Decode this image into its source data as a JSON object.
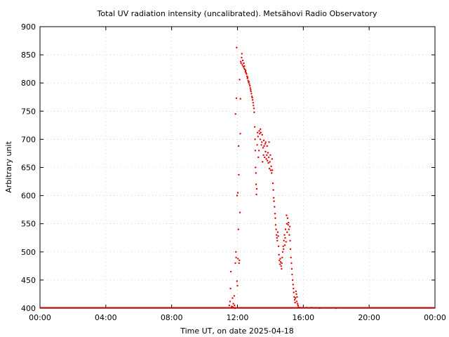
{
  "chart_data": {
    "type": "scatter",
    "title": "Total UV radiation intensity (uncalibrated). Metsähovi Radio Observatory",
    "xlabel": "Time UT, on date 2025-04-18",
    "ylabel": "Arbitrary unit",
    "xlim": [
      0,
      24
    ],
    "ylim": [
      400,
      900
    ],
    "x_ticks": [
      {
        "value": 0,
        "label": "00:00"
      },
      {
        "value": 4,
        "label": "04:00"
      },
      {
        "value": 8,
        "label": "08:00"
      },
      {
        "value": 12,
        "label": "12:00"
      },
      {
        "value": 16,
        "label": "16:00"
      },
      {
        "value": 20,
        "label": "20:00"
      },
      {
        "value": 24,
        "label": "00:00"
      }
    ],
    "y_ticks": [
      {
        "value": 400,
        "label": "400"
      },
      {
        "value": 450,
        "label": "450"
      },
      {
        "value": 500,
        "label": "500"
      },
      {
        "value": 550,
        "label": "550"
      },
      {
        "value": 600,
        "label": "600"
      },
      {
        "value": 650,
        "label": "650"
      },
      {
        "value": 700,
        "label": "700"
      },
      {
        "value": 750,
        "label": "750"
      },
      {
        "value": 800,
        "label": "800"
      },
      {
        "value": 850,
        "label": "850"
      },
      {
        "value": 900,
        "label": "900"
      }
    ],
    "grid": true,
    "legend": false,
    "colors": {
      "series": "#e00000",
      "grid": "#bbbbbb",
      "axis": "#000000"
    },
    "series": [
      {
        "points": [
          [
            11.5,
            405
          ],
          [
            11.55,
            412
          ],
          [
            11.58,
            435
          ],
          [
            11.6,
            465
          ],
          [
            11.65,
            403
          ],
          [
            11.7,
            418
          ],
          [
            11.72,
            402
          ],
          [
            11.75,
            408
          ],
          [
            11.8,
            422
          ],
          [
            11.82,
            405
          ],
          [
            11.85,
            400
          ],
          [
            11.87,
            480
          ],
          [
            11.88,
            745
          ],
          [
            11.9,
            500
          ],
          [
            11.92,
            490
          ],
          [
            11.93,
            773
          ],
          [
            11.95,
            863
          ],
          [
            11.97,
            448
          ],
          [
            11.98,
            600
          ],
          [
            12.0,
            440
          ],
          [
            12.02,
            605
          ],
          [
            12.03,
            488
          ],
          [
            12.05,
            540
          ],
          [
            12.07,
            688
          ],
          [
            12.08,
            637
          ],
          [
            12.1,
            480
          ],
          [
            12.12,
            485
          ],
          [
            12.13,
            806
          ],
          [
            12.15,
            570
          ],
          [
            12.17,
            710
          ],
          [
            12.18,
            772
          ],
          [
            12.2,
            838
          ],
          [
            12.22,
            835
          ],
          [
            12.25,
            845
          ],
          [
            12.27,
            852
          ],
          [
            12.3,
            832
          ],
          [
            12.32,
            840
          ],
          [
            12.35,
            829
          ],
          [
            12.38,
            835
          ],
          [
            12.4,
            826
          ],
          [
            12.42,
            830
          ],
          [
            12.45,
            824
          ],
          [
            12.48,
            820
          ],
          [
            12.5,
            822
          ],
          [
            12.52,
            818
          ],
          [
            12.55,
            816
          ],
          [
            12.58,
            812
          ],
          [
            12.6,
            808
          ],
          [
            12.62,
            810
          ],
          [
            12.65,
            804
          ],
          [
            12.68,
            801
          ],
          [
            12.7,
            802
          ],
          [
            12.72,
            798
          ],
          [
            12.75,
            795
          ],
          [
            12.78,
            791
          ],
          [
            12.8,
            788
          ],
          [
            12.82,
            785
          ],
          [
            12.85,
            781
          ],
          [
            12.88,
            776
          ],
          [
            12.9,
            774
          ],
          [
            12.92,
            770
          ],
          [
            12.95,
            765
          ],
          [
            12.97,
            760
          ],
          [
            13.0,
            755
          ],
          [
            13.02,
            748
          ],
          [
            13.05,
            722
          ],
          [
            13.07,
            700
          ],
          [
            13.08,
            680
          ],
          [
            13.1,
            650
          ],
          [
            13.12,
            640
          ],
          [
            13.13,
            620
          ],
          [
            13.15,
            602
          ],
          [
            13.17,
            612
          ],
          [
            13.2,
            690
          ],
          [
            13.22,
            712
          ],
          [
            13.25,
            705
          ],
          [
            13.27,
            668
          ],
          [
            13.3,
            680
          ],
          [
            13.32,
            715
          ],
          [
            13.35,
            710
          ],
          [
            13.38,
            700
          ],
          [
            13.4,
            718
          ],
          [
            13.42,
            712
          ],
          [
            13.45,
            690
          ],
          [
            13.48,
            695
          ],
          [
            13.5,
            708
          ],
          [
            13.52,
            660
          ],
          [
            13.55,
            685
          ],
          [
            13.58,
            672
          ],
          [
            13.6,
            698
          ],
          [
            13.62,
            688
          ],
          [
            13.65,
            668
          ],
          [
            13.68,
            692
          ],
          [
            13.7,
            678
          ],
          [
            13.72,
            695
          ],
          [
            13.75,
            665
          ],
          [
            13.78,
            672
          ],
          [
            13.8,
            688
          ],
          [
            13.82,
            662
          ],
          [
            13.85,
            676
          ],
          [
            13.88,
            658
          ],
          [
            13.9,
            668
          ],
          [
            13.92,
            695
          ],
          [
            13.95,
            648
          ],
          [
            13.97,
            660
          ],
          [
            14.0,
            672
          ],
          [
            14.02,
            645
          ],
          [
            14.05,
            652
          ],
          [
            14.08,
            640
          ],
          [
            14.1,
            665
          ],
          [
            14.12,
            645
          ],
          [
            14.15,
            622
          ],
          [
            14.18,
            610
          ],
          [
            14.2,
            596
          ],
          [
            14.22,
            590
          ],
          [
            14.25,
            580
          ],
          [
            14.28,
            568
          ],
          [
            14.3,
            560
          ],
          [
            14.32,
            548
          ],
          [
            14.35,
            540
          ],
          [
            14.38,
            530
          ],
          [
            14.4,
            525
          ],
          [
            14.42,
            520
          ],
          [
            14.45,
            535
          ],
          [
            14.48,
            528
          ],
          [
            14.5,
            510
          ],
          [
            14.52,
            495
          ],
          [
            14.55,
            485
          ],
          [
            14.58,
            478
          ],
          [
            14.6,
            488
          ],
          [
            14.62,
            482
          ],
          [
            14.65,
            475
          ],
          [
            14.68,
            470
          ],
          [
            14.7,
            480
          ],
          [
            14.72,
            490
          ],
          [
            14.75,
            500
          ],
          [
            14.78,
            510
          ],
          [
            14.8,
            505
          ],
          [
            14.82,
            520
          ],
          [
            14.85,
            530
          ],
          [
            14.88,
            512
          ],
          [
            14.9,
            525
          ],
          [
            14.92,
            540
          ],
          [
            14.95,
            518
          ],
          [
            14.98,
            565
          ],
          [
            15.0,
            550
          ],
          [
            15.02,
            535
          ],
          [
            15.05,
            560
          ],
          [
            15.08,
            548
          ],
          [
            15.1,
            552
          ],
          [
            15.12,
            540
          ],
          [
            15.15,
            530
          ],
          [
            15.18,
            545
          ],
          [
            15.2,
            520
          ],
          [
            15.22,
            505
          ],
          [
            15.25,
            490
          ],
          [
            15.28,
            480
          ],
          [
            15.3,
            470
          ],
          [
            15.32,
            460
          ],
          [
            15.35,
            450
          ],
          [
            15.38,
            442
          ],
          [
            15.4,
            435
          ],
          [
            15.42,
            428
          ],
          [
            15.45,
            420
          ],
          [
            15.48,
            415
          ],
          [
            15.5,
            410
          ],
          [
            15.52,
            418
          ],
          [
            15.55,
            430
          ],
          [
            15.58,
            425
          ],
          [
            15.6,
            412
          ],
          [
            15.62,
            420
          ],
          [
            15.65,
            408
          ],
          [
            15.68,
            405
          ],
          [
            15.7,
            402
          ],
          [
            15.8,
            401
          ],
          [
            16.0,
            401
          ],
          [
            16.2,
            401
          ],
          [
            16.5,
            401
          ],
          [
            17.0,
            400
          ],
          [
            18.0,
            400
          ]
        ]
      }
    ]
  }
}
